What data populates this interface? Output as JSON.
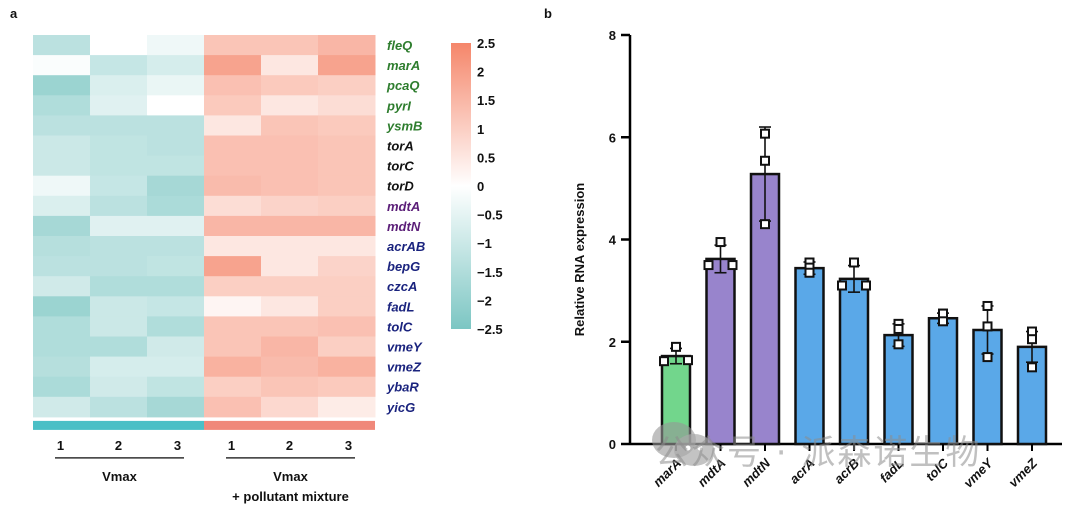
{
  "panels": {
    "a_label": "a",
    "b_label": "b"
  },
  "watermark": "公众号 · 派森诺生物",
  "chart_data": [
    {
      "type": "heatmap",
      "title": "",
      "rows": [
        "fleQ",
        "marA",
        "pcaQ",
        "pyrI",
        "ysmB",
        "torA",
        "torC",
        "torD",
        "mdtA",
        "mdtN",
        "acrAB",
        "bepG",
        "czcA",
        "fadL",
        "tolC",
        "vmeY",
        "vmeZ",
        "ybaR",
        "yicG"
      ],
      "row_label_colors": [
        "#2e7d2e",
        "#2e7d2e",
        "#2e7d2e",
        "#2e7d2e",
        "#2e7d2e",
        "#111111",
        "#111111",
        "#111111",
        "#5b1e78",
        "#5b1e78",
        "#1a237e",
        "#1a237e",
        "#1a237e",
        "#1a237e",
        "#1a237e",
        "#1a237e",
        "#1a237e",
        "#1a237e",
        "#1a237e"
      ],
      "columns": [
        "1",
        "2",
        "3",
        "1",
        "2",
        "3"
      ],
      "groups": [
        {
          "name": "Vmax",
          "columns": [
            0,
            1,
            2
          ],
          "color": "#4bbfc6"
        },
        {
          "name": "Vmax\n+ pollutant mixture",
          "name_line1": "Vmax",
          "name_line2": "+ pollutant mixture",
          "columns": [
            3,
            4,
            5
          ],
          "color": "#f0887a"
        }
      ],
      "values": [
        [
          -1.3,
          0.0,
          -0.3,
          1.2,
          1.2,
          1.5
        ],
        [
          -0.1,
          -1.1,
          -0.8,
          1.9,
          0.5,
          1.9
        ],
        [
          -1.9,
          -0.7,
          -0.4,
          1.3,
          1.1,
          1.0
        ],
        [
          -1.5,
          -0.6,
          0.0,
          1.1,
          0.5,
          0.7
        ],
        [
          -1.3,
          -1.3,
          -1.3,
          0.5,
          1.2,
          1.1
        ],
        [
          -1.0,
          -1.2,
          -1.3,
          1.3,
          1.3,
          1.2
        ],
        [
          -1.0,
          -1.2,
          -1.2,
          1.3,
          1.3,
          1.2
        ],
        [
          -0.3,
          -1.1,
          -1.7,
          1.4,
          1.3,
          1.2
        ],
        [
          -0.7,
          -1.3,
          -1.6,
          0.7,
          0.9,
          1.0
        ],
        [
          -1.7,
          -0.6,
          -0.6,
          1.5,
          1.5,
          1.5
        ],
        [
          -1.4,
          -1.3,
          -1.3,
          0.5,
          0.5,
          0.5
        ],
        [
          -1.3,
          -1.3,
          -1.2,
          1.9,
          0.5,
          0.9
        ],
        [
          -0.9,
          -1.5,
          -1.5,
          1.0,
          1.0,
          1.0
        ],
        [
          -1.9,
          -1.0,
          -1.1,
          0.2,
          0.5,
          1.0
        ],
        [
          -1.5,
          -1.0,
          -1.5,
          1.2,
          1.2,
          1.3
        ],
        [
          -1.5,
          -1.5,
          -0.9,
          1.2,
          1.5,
          1.0
        ],
        [
          -1.4,
          -0.8,
          -0.8,
          1.6,
          1.4,
          1.6
        ],
        [
          -1.6,
          -0.9,
          -1.2,
          1.0,
          1.2,
          1.1
        ],
        [
          -0.9,
          -1.3,
          -1.7,
          1.3,
          0.8,
          0.4
        ]
      ],
      "colorbar": {
        "min": -2.5,
        "max": 2.5,
        "ticks": [
          "2.5",
          "2",
          "1.5",
          "1",
          "0.5",
          "0",
          "−0.5",
          "−1",
          "−1.5",
          "−2",
          "−2.5"
        ],
        "tick_values": [
          2.5,
          2,
          1.5,
          1,
          0.5,
          0,
          -0.5,
          -1,
          -1.5,
          -2,
          -2.5
        ],
        "low_color": "#7cc6c3",
        "mid_color": "#ffffff",
        "high_color": "#f5866a"
      }
    },
    {
      "type": "bar",
      "title": "",
      "xlabel": "",
      "ylabel": "Relative RNA expression",
      "ylim": [
        0,
        8
      ],
      "yticks": [
        0,
        2,
        4,
        6,
        8
      ],
      "ytick_labels": [
        "0",
        "2",
        "4",
        "6",
        "8"
      ],
      "grid": false,
      "categories": [
        "marA",
        "mdtA",
        "mdtN",
        "acrA",
        "acrB",
        "fadL",
        "tolC",
        "vmeY",
        "vmeZ"
      ],
      "values": [
        1.72,
        3.62,
        5.28,
        3.44,
        3.23,
        2.13,
        2.46,
        2.23,
        1.9
      ],
      "errors": [
        0.15,
        0.27,
        0.92,
        0.12,
        0.26,
        0.22,
        0.1,
        0.47,
        0.3
      ],
      "points": [
        [
          1.9,
          1.62,
          1.64
        ],
        [
          3.95,
          3.5,
          3.5
        ],
        [
          6.07,
          5.54,
          4.3
        ],
        [
          3.55,
          3.45,
          3.35
        ],
        [
          3.55,
          3.1,
          3.1
        ],
        [
          2.35,
          2.25,
          1.95
        ],
        [
          2.55,
          2.55,
          2.4
        ],
        [
          2.7,
          2.3,
          1.7
        ],
        [
          2.2,
          2.05,
          1.5
        ]
      ],
      "bar_colors": [
        "#72d68c",
        "#9884cc",
        "#9884cc",
        "#5aa8e8",
        "#5aa8e8",
        "#5aa8e8",
        "#5aa8e8",
        "#5aa8e8",
        "#5aa8e8"
      ]
    }
  ]
}
